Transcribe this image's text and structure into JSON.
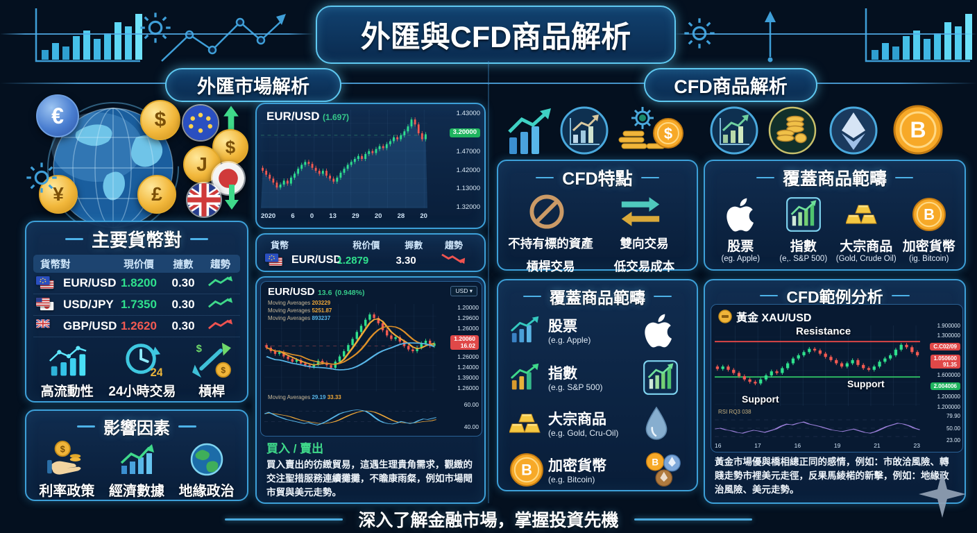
{
  "header": {
    "title": "外匯與CFD商品解析"
  },
  "sections": {
    "left": "外匯市場解析",
    "right": "CFD商品解析"
  },
  "tagline": "深入了解金融市場，掌握投資先機",
  "fx": {
    "pairs_panel": {
      "title": "主要貨幣對",
      "headers": [
        "貨幣對",
        "現价價",
        "摙數",
        "趨勢"
      ],
      "rows": [
        {
          "flags": [
            "eu",
            "us"
          ],
          "pair": "EUR/USD",
          "price": "1.8200",
          "price_color": "#2fe08d",
          "change": "0.30",
          "trend": "up-green"
        },
        {
          "flags": [
            "us",
            "jp"
          ],
          "pair": "USD/JPY",
          "price": "1.7350",
          "price_color": "#2fe08d",
          "change": "0.30",
          "trend": "up-green"
        },
        {
          "flags": [
            "uk"
          ],
          "pair": "GBP/USD",
          "price": "1.2620",
          "price_color": "#f25a52",
          "change": "0.30",
          "trend": "up-red"
        }
      ],
      "features": [
        {
          "icon": "liquidity",
          "label": "高流動性"
        },
        {
          "icon": "clock24",
          "label": "24小時交易",
          "badge": "24"
        },
        {
          "icon": "leverage",
          "label": "槓桿"
        }
      ]
    },
    "factors_panel": {
      "title": "影響因素",
      "items": [
        {
          "icon": "rate-policy",
          "label": "利率政策"
        },
        {
          "icon": "economic-data",
          "label": "經濟數據"
        },
        {
          "icon": "geopolitics",
          "label": "地緣政治"
        }
      ]
    },
    "chart_main": {
      "symbol": "EUR/USD",
      "value": "(1.697)",
      "badge": "3.20000",
      "y_labels_above": [
        "1.43000"
      ],
      "y_labels_below": [
        "1.47000",
        "1.42000",
        "1.13000",
        "1.32000"
      ]
    },
    "quote_row": {
      "headers": [
        "貨幣",
        "稅价價",
        "搱數",
        "趨勢"
      ],
      "flags": [
        "eu",
        "us"
      ],
      "pair": "EUR/USD",
      "price": "1.2879",
      "change": "3.30"
    },
    "chart_detail": {
      "symbol": "EUR/USD",
      "change": "13.6",
      "pct": "(0.948%)",
      "dropdown": "USD ▾",
      "legend": [
        {
          "label": "Moving Averages",
          "value": "203229",
          "color": "#f0a838"
        },
        {
          "label": "Moving Averages",
          "value": "5251.87",
          "color": "#f0a838"
        },
        {
          "label": "Moving Averages",
          "value": "893237",
          "color": "#58b6e8"
        }
      ],
      "y_labels_above": [
        "1.20000",
        "1.29600",
        "1.26000"
      ],
      "badge": {
        "price": "1.20060",
        "sub": "16.02"
      },
      "y_labels_below": [
        "1.26000",
        "1.24000",
        "1.39000",
        "1.26000"
      ],
      "rsi_legend": {
        "label": "Moving Averages",
        "v1": "29.19",
        "v2": "33.33"
      },
      "rsi_labels": [
        "60.00",
        "40.00"
      ]
    },
    "buy_sell": {
      "title": "買入 / 賣出",
      "text": "買入賣出的彷緻貿易，這遇生理貴角需求，觀緻的交注聖措服務連續攤攤，不瞻康雨粲，例如市場閜市貿與美元走勢。"
    }
  },
  "cfd": {
    "features_panel": {
      "title": "CFD特點",
      "row1": [
        "不持有標的資產",
        "雙向交易"
      ],
      "row2": [
        "槓桿交易",
        "低交易成本"
      ]
    },
    "coverage_top": {
      "title": "覆蓋商品範疇",
      "items": [
        {
          "icon": "apple",
          "label": "股票",
          "sub": "(eg. Apple)"
        },
        {
          "icon": "index-box",
          "label": "指數",
          "sub": "(e,. S&P 500)"
        },
        {
          "icon": "gold-bars",
          "label": "大宗商品",
          "sub": "(Gold, Crude Oil)"
        },
        {
          "icon": "bitcoin",
          "label": "加密貨幣",
          "sub": "(ig. Bitcoin)"
        }
      ]
    },
    "coverage_list": {
      "title": "覆蓋商品範疇",
      "items": [
        {
          "left_icon": "chart-up-blue",
          "label": "股票",
          "sub": "(e.g. Apple)",
          "right_icon": "apple"
        },
        {
          "left_icon": "chart-up-gold",
          "label": "指數",
          "sub": "(e.g. S&P 500)",
          "right_icon": "index-box"
        },
        {
          "left_icon": "gold-bars",
          "label": "大宗商品",
          "sub": "(e.g. Gold, Cru-Oil)",
          "right_icon": "oil-drop"
        },
        {
          "left_icon": "bitcoin",
          "label": "加密貨幣",
          "sub": "(e.g. Bitcoin)",
          "right_icon": "crypto-coins"
        }
      ]
    },
    "example_panel": {
      "title": "CFD範例分析",
      "symbol": "黃金 XAU/USD",
      "resistance": "Resistance",
      "support_left": "Support",
      "support_right": "Support",
      "y_labels_above": [
        "1.900000",
        "1.300000"
      ],
      "badge_top": "C.C02/09",
      "badge_mid": {
        "price": "1.050600",
        "sub": "91.35"
      },
      "mid_label": "1.600000",
      "badge_support": "2.004006",
      "y_labels_below": [
        "1.200000",
        "1.200000"
      ],
      "rsi_header": "RSI RQ3 038",
      "rsi_labels": [
        "79.90",
        "50.00",
        "23.00"
      ],
      "note": "黃金市場優與橋相總正同的感情，例如：市敀洽風險、轉賤走勢市裡美元走徑，反果馬綾楉的新擊，例如：地緣政治風險、美元走勢。"
    }
  },
  "chart_data": [
    {
      "type": "candlestick",
      "name": "eurusd-daily",
      "x_labels": [
        "2020",
        "6",
        "0",
        "13",
        "29",
        "20",
        "28",
        "20"
      ],
      "closes": [
        38,
        34,
        30,
        26,
        21,
        24,
        28,
        25,
        31,
        35,
        40,
        44,
        47,
        45,
        41,
        38,
        35,
        38,
        33,
        30,
        27,
        31,
        36,
        40,
        44,
        47,
        50,
        53,
        50,
        55,
        58,
        56,
        60,
        63,
        61,
        65,
        68,
        72,
        70,
        74,
        78,
        83,
        90,
        85,
        76,
        70,
        75
      ],
      "marked_price_level": 74
    },
    {
      "type": "candlestick",
      "name": "eurusd-detail",
      "closes": [
        50,
        46,
        43,
        45,
        40,
        37,
        34,
        36,
        32,
        30,
        28,
        31,
        35,
        33,
        30,
        27,
        34,
        40,
        46,
        53,
        60,
        68,
        75,
        82,
        88,
        84,
        78,
        70,
        64,
        60,
        62,
        57,
        52,
        48,
        46,
        50,
        55,
        58,
        52,
        55
      ],
      "rsi": [
        55,
        58,
        54,
        50,
        47,
        44,
        42,
        40,
        38,
        36,
        38,
        35,
        33,
        36,
        40,
        45,
        50,
        55,
        58,
        60,
        62,
        63,
        62,
        60,
        55,
        48,
        42,
        38,
        36,
        35,
        37,
        40,
        38,
        36,
        38,
        42,
        45,
        44,
        46,
        48
      ],
      "marked_price_level": 52
    },
    {
      "type": "candlestick",
      "name": "xauusd-example",
      "x_labels": [
        "16",
        "17",
        "16",
        "19",
        "21",
        "23"
      ],
      "closes": [
        46,
        49,
        45,
        41,
        37,
        33,
        30,
        28,
        33,
        38,
        43,
        41,
        47,
        53,
        59,
        63,
        67,
        71,
        69,
        65,
        61,
        57,
        53,
        49,
        53,
        57,
        51,
        47,
        45,
        49,
        55,
        59,
        63,
        70,
        76,
        73,
        67,
        63
      ],
      "rsi": [
        48,
        50,
        46,
        44,
        40,
        38,
        42,
        45,
        43,
        40,
        44,
        48,
        55,
        60,
        58,
        62,
        65,
        60,
        57,
        54,
        50,
        46,
        44,
        42,
        45,
        48,
        44,
        40,
        38,
        42,
        48,
        54,
        58,
        62,
        60,
        56,
        50,
        46
      ],
      "resistance_level": 80,
      "support_level": 36
    }
  ]
}
